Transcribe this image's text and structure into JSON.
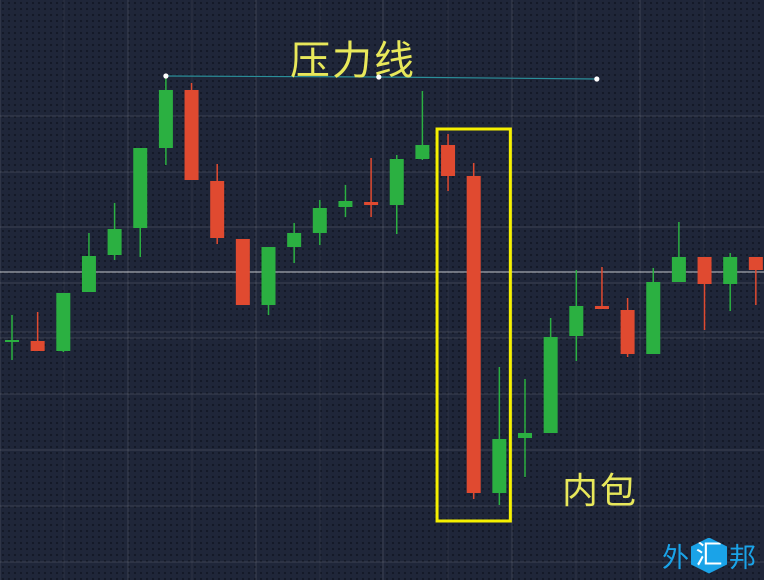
{
  "chart_data": {
    "type": "candlestick",
    "title": "压力线",
    "annotation_label": "内包",
    "xlabel": "",
    "ylabel": "",
    "ylim": [
      0,
      580
    ],
    "grid": true,
    "colors": {
      "up": "#2bb041",
      "down": "#e04a30",
      "resistance_line": "#2a8f9a",
      "highlight_box": "#f5f000",
      "label": "#e8e85a"
    },
    "candles": [
      {
        "o": 240,
        "h": 265,
        "l": 220,
        "c": 240
      },
      {
        "o": 239,
        "h": 268,
        "l": 229,
        "c": 229
      },
      {
        "o": 229,
        "h": 287,
        "l": 228,
        "c": 287
      },
      {
        "o": 288,
        "h": 347,
        "l": 288,
        "c": 324
      },
      {
        "o": 325,
        "h": 377,
        "l": 320,
        "c": 351
      },
      {
        "o": 352,
        "h": 432,
        "l": 323,
        "c": 432
      },
      {
        "o": 432,
        "h": 504,
        "l": 415,
        "c": 490
      },
      {
        "o": 490,
        "h": 497,
        "l": 400,
        "c": 400
      },
      {
        "o": 399,
        "h": 416,
        "l": 336,
        "c": 342
      },
      {
        "o": 341,
        "h": 341,
        "l": 275,
        "c": 275
      },
      {
        "o": 275,
        "h": 333,
        "l": 265,
        "c": 333
      },
      {
        "o": 333,
        "h": 357,
        "l": 317,
        "c": 347
      },
      {
        "o": 347,
        "h": 380,
        "l": 335,
        "c": 372
      },
      {
        "o": 373,
        "h": 395,
        "l": 363,
        "c": 379
      },
      {
        "o": 378,
        "h": 422,
        "l": 363,
        "c": 375
      },
      {
        "o": 375,
        "h": 425,
        "l": 346,
        "c": 421
      },
      {
        "o": 421,
        "h": 489,
        "l": 420,
        "c": 435
      },
      {
        "o": 435,
        "h": 446,
        "l": 389,
        "c": 404
      },
      {
        "o": 404,
        "h": 417,
        "l": 81,
        "c": 87
      },
      {
        "o": 87,
        "h": 213,
        "l": 75,
        "c": 141
      },
      {
        "o": 142,
        "h": 201,
        "l": 103,
        "c": 147
      },
      {
        "o": 147,
        "h": 262,
        "l": 147,
        "c": 243
      },
      {
        "o": 244,
        "h": 310,
        "l": 219,
        "c": 274
      },
      {
        "o": 274,
        "h": 313,
        "l": 271,
        "c": 271
      },
      {
        "o": 270,
        "h": 282,
        "l": 223,
        "c": 226
      },
      {
        "o": 226,
        "h": 312,
        "l": 226,
        "c": 298
      },
      {
        "o": 298,
        "h": 358,
        "l": 298,
        "c": 323
      },
      {
        "o": 323,
        "h": 323,
        "l": 250,
        "c": 296
      },
      {
        "o": 296,
        "h": 327,
        "l": 269,
        "c": 323
      },
      {
        "o": 323,
        "h": 323,
        "l": 275,
        "c": 310
      }
    ],
    "resistance_line": {
      "points": [
        [
          6,
          504
        ],
        [
          14.3,
          503
        ],
        [
          22.8,
          501
        ]
      ]
    },
    "highlight_box": {
      "from_candle": 17,
      "to_candle": 19
    },
    "current_price_line": 308
  },
  "logo": {
    "left": "外",
    "mid": "汇",
    "right": "邦"
  }
}
